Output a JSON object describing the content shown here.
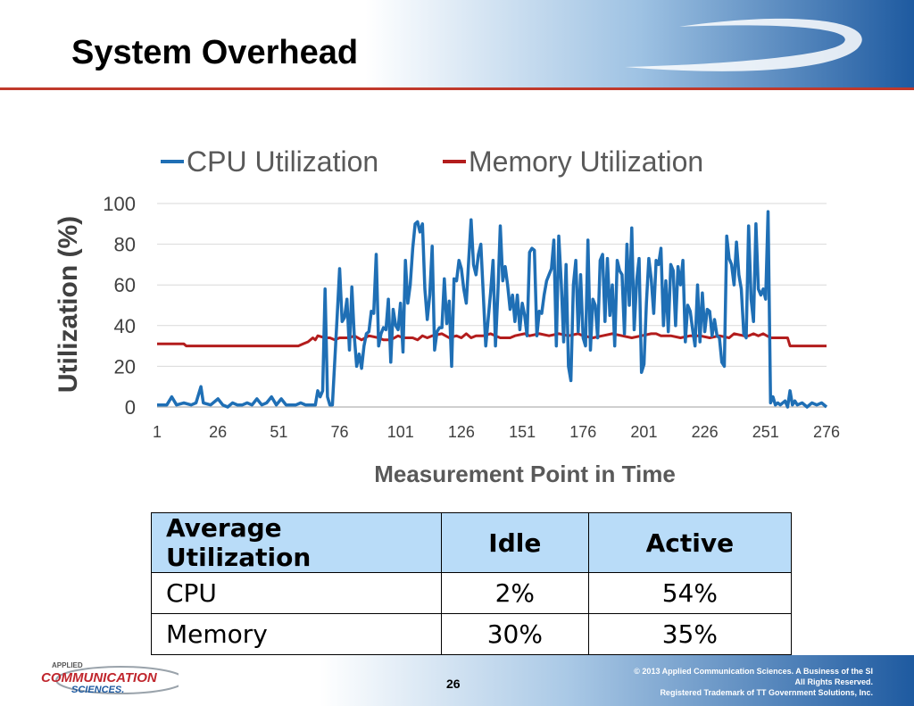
{
  "slide": {
    "title": "System Overhead",
    "page_number": "26"
  },
  "footer": {
    "copyright_lines": [
      "© 2013 Applied Communication Sciences. A Business of the SI",
      "All Rights Reserved.",
      "Registered Trademark of TT Government Solutions, Inc."
    ],
    "logo_text": {
      "top": "APPLIED",
      "middle": "COMMUNICATION",
      "bottom": "SCIENCES."
    }
  },
  "colors": {
    "cpu": "#1f6fb5",
    "memory": "#b31d1d",
    "header_blue": "#1e5aa0",
    "title_rule": "#c0392b",
    "table_header": "#b9dcf8"
  },
  "chart_data": {
    "type": "line",
    "xlabel": "Measurement Point in Time",
    "ylabel": "Utilization (%)",
    "ylim": [
      0,
      100
    ],
    "yticks": [
      "0",
      "20",
      "40",
      "60",
      "80",
      "100"
    ],
    "xlim": [
      1,
      276
    ],
    "xticks": [
      "1",
      "26",
      "51",
      "76",
      "101",
      "126",
      "151",
      "176",
      "201",
      "226",
      "251",
      "276"
    ],
    "grid": "horizontal",
    "legend_position": "top",
    "series": [
      {
        "name": "CPU Utilization",
        "color": "#1f6fb5",
        "points": [
          [
            1,
            1
          ],
          [
            5,
            1
          ],
          [
            7,
            5
          ],
          [
            9,
            1
          ],
          [
            12,
            2
          ],
          [
            15,
            1
          ],
          [
            17,
            2
          ],
          [
            19,
            10
          ],
          [
            20,
            2
          ],
          [
            23,
            1
          ],
          [
            26,
            4
          ],
          [
            28,
            1
          ],
          [
            30,
            0
          ],
          [
            32,
            2
          ],
          [
            34,
            1
          ],
          [
            36,
            1
          ],
          [
            38,
            2
          ],
          [
            40,
            1
          ],
          [
            42,
            4
          ],
          [
            44,
            1
          ],
          [
            46,
            2
          ],
          [
            48,
            5
          ],
          [
            50,
            1
          ],
          [
            52,
            4
          ],
          [
            54,
            1
          ],
          [
            56,
            1
          ],
          [
            58,
            1
          ],
          [
            60,
            2
          ],
          [
            62,
            1
          ],
          [
            64,
            1
          ],
          [
            66,
            1
          ],
          [
            67,
            8
          ],
          [
            68,
            5
          ],
          [
            69,
            8
          ],
          [
            70,
            58
          ],
          [
            71,
            5
          ],
          [
            72,
            1
          ],
          [
            73,
            1
          ],
          [
            75,
            45
          ],
          [
            76,
            68
          ],
          [
            77,
            42
          ],
          [
            78,
            44
          ],
          [
            79,
            53
          ],
          [
            80,
            28
          ],
          [
            81,
            59
          ],
          [
            82,
            35
          ],
          [
            83,
            20
          ],
          [
            84,
            26
          ],
          [
            85,
            19
          ],
          [
            86,
            30
          ],
          [
            87,
            36
          ],
          [
            88,
            37
          ],
          [
            89,
            47
          ],
          [
            90,
            46
          ],
          [
            91,
            75
          ],
          [
            92,
            30
          ],
          [
            93,
            36
          ],
          [
            94,
            39
          ],
          [
            95,
            38
          ],
          [
            96,
            53
          ],
          [
            97,
            22
          ],
          [
            98,
            48
          ],
          [
            99,
            40
          ],
          [
            100,
            38
          ],
          [
            101,
            51
          ],
          [
            102,
            27
          ],
          [
            103,
            72
          ],
          [
            104,
            51
          ],
          [
            105,
            60
          ],
          [
            106,
            78
          ],
          [
            107,
            90
          ],
          [
            108,
            91
          ],
          [
            109,
            86
          ],
          [
            110,
            90
          ],
          [
            111,
            58
          ],
          [
            112,
            43
          ],
          [
            113,
            55
          ],
          [
            114,
            79
          ],
          [
            115,
            28
          ],
          [
            116,
            37
          ],
          [
            117,
            39
          ],
          [
            118,
            39
          ],
          [
            119,
            63
          ],
          [
            120,
            41
          ],
          [
            121,
            52
          ],
          [
            122,
            20
          ],
          [
            123,
            63
          ],
          [
            124,
            62
          ],
          [
            125,
            72
          ],
          [
            126,
            68
          ],
          [
            127,
            58
          ],
          [
            128,
            51
          ],
          [
            129,
            72
          ],
          [
            130,
            92
          ],
          [
            131,
            70
          ],
          [
            132,
            65
          ],
          [
            133,
            75
          ],
          [
            134,
            80
          ],
          [
            135,
            55
          ],
          [
            136,
            30
          ],
          [
            137,
            43
          ],
          [
            138,
            56
          ],
          [
            139,
            72
          ],
          [
            140,
            30
          ],
          [
            141,
            56
          ],
          [
            142,
            89
          ],
          [
            143,
            62
          ],
          [
            144,
            69
          ],
          [
            145,
            60
          ],
          [
            146,
            48
          ],
          [
            147,
            55
          ],
          [
            148,
            42
          ],
          [
            149,
            55
          ],
          [
            150,
            38
          ],
          [
            151,
            51
          ],
          [
            152,
            45
          ],
          [
            153,
            35
          ],
          [
            154,
            76
          ],
          [
            155,
            78
          ],
          [
            156,
            77
          ],
          [
            157,
            35
          ],
          [
            158,
            47
          ],
          [
            159,
            46
          ],
          [
            160,
            55
          ],
          [
            161,
            62
          ],
          [
            162,
            65
          ],
          [
            163,
            68
          ],
          [
            164,
            82
          ],
          [
            165,
            30
          ],
          [
            166,
            84
          ],
          [
            167,
            62
          ],
          [
            168,
            32
          ],
          [
            169,
            70
          ],
          [
            170,
            20
          ],
          [
            171,
            13
          ],
          [
            172,
            60
          ],
          [
            173,
            72
          ],
          [
            174,
            37
          ],
          [
            175,
            65
          ],
          [
            176,
            34
          ],
          [
            177,
            30
          ],
          [
            178,
            82
          ],
          [
            179,
            28
          ],
          [
            180,
            53
          ],
          [
            181,
            50
          ],
          [
            182,
            34
          ],
          [
            183,
            72
          ],
          [
            184,
            75
          ],
          [
            185,
            42
          ],
          [
            186,
            73
          ],
          [
            187,
            45
          ],
          [
            188,
            60
          ],
          [
            189,
            30
          ],
          [
            190,
            72
          ],
          [
            191,
            67
          ],
          [
            192,
            65
          ],
          [
            193,
            36
          ],
          [
            194,
            80
          ],
          [
            195,
            50
          ],
          [
            196,
            88
          ],
          [
            197,
            38
          ],
          [
            198,
            62
          ],
          [
            199,
            73
          ],
          [
            200,
            17
          ],
          [
            201,
            21
          ],
          [
            202,
            51
          ],
          [
            203,
            73
          ],
          [
            204,
            63
          ],
          [
            205,
            46
          ],
          [
            206,
            72
          ],
          [
            207,
            70
          ],
          [
            208,
            78
          ],
          [
            209,
            40
          ],
          [
            210,
            62
          ],
          [
            211,
            37
          ],
          [
            212,
            70
          ],
          [
            213,
            67
          ],
          [
            214,
            40
          ],
          [
            215,
            69
          ],
          [
            216,
            60
          ],
          [
            217,
            72
          ],
          [
            218,
            32
          ],
          [
            219,
            50
          ],
          [
            220,
            47
          ],
          [
            221,
            38
          ],
          [
            222,
            30
          ],
          [
            223,
            60
          ],
          [
            224,
            32
          ],
          [
            225,
            56
          ],
          [
            226,
            37
          ],
          [
            227,
            48
          ],
          [
            228,
            47
          ],
          [
            229,
            35
          ],
          [
            230,
            43
          ],
          [
            231,
            35
          ],
          [
            232,
            34
          ],
          [
            233,
            22
          ],
          [
            234,
            20
          ],
          [
            235,
            84
          ],
          [
            236,
            73
          ],
          [
            237,
            70
          ],
          [
            238,
            60
          ],
          [
            239,
            81
          ],
          [
            240,
            65
          ],
          [
            241,
            58
          ],
          [
            242,
            36
          ],
          [
            243,
            34
          ],
          [
            244,
            89
          ],
          [
            245,
            53
          ],
          [
            246,
            42
          ],
          [
            247,
            90
          ],
          [
            248,
            58
          ],
          [
            249,
            55
          ],
          [
            250,
            58
          ],
          [
            251,
            53
          ],
          [
            252,
            96
          ],
          [
            253,
            2
          ],
          [
            254,
            5
          ],
          [
            255,
            1
          ],
          [
            256,
            2
          ],
          [
            257,
            1
          ],
          [
            259,
            3
          ],
          [
            260,
            0
          ],
          [
            261,
            8
          ],
          [
            262,
            1
          ],
          [
            263,
            3
          ],
          [
            264,
            1
          ],
          [
            266,
            2
          ],
          [
            268,
            0
          ],
          [
            270,
            2
          ],
          [
            272,
            1
          ],
          [
            274,
            2
          ],
          [
            276,
            0
          ]
        ]
      },
      {
        "name": "Memory Utilization",
        "color": "#b31d1d",
        "points": [
          [
            1,
            31
          ],
          [
            12,
            31
          ],
          [
            13,
            30
          ],
          [
            59,
            30
          ],
          [
            61,
            31
          ],
          [
            63,
            32
          ],
          [
            65,
            34
          ],
          [
            66,
            33
          ],
          [
            67,
            35
          ],
          [
            70,
            34
          ],
          [
            72,
            34
          ],
          [
            74,
            33
          ],
          [
            76,
            34
          ],
          [
            80,
            34
          ],
          [
            82,
            35
          ],
          [
            85,
            33
          ],
          [
            88,
            35
          ],
          [
            92,
            34
          ],
          [
            94,
            33
          ],
          [
            97,
            33
          ],
          [
            100,
            35
          ],
          [
            102,
            34
          ],
          [
            106,
            34
          ],
          [
            108,
            33
          ],
          [
            110,
            35
          ],
          [
            112,
            34
          ],
          [
            114,
            35
          ],
          [
            118,
            36
          ],
          [
            121,
            34
          ],
          [
            124,
            35
          ],
          [
            126,
            34
          ],
          [
            128,
            36
          ],
          [
            130,
            34
          ],
          [
            132,
            35
          ],
          [
            135,
            35
          ],
          [
            138,
            36
          ],
          [
            140,
            35
          ],
          [
            142,
            34
          ],
          [
            146,
            34
          ],
          [
            148,
            35
          ],
          [
            152,
            36
          ],
          [
            154,
            35
          ],
          [
            158,
            36
          ],
          [
            162,
            35
          ],
          [
            166,
            36
          ],
          [
            170,
            35
          ],
          [
            174,
            36
          ],
          [
            176,
            35
          ],
          [
            180,
            34
          ],
          [
            184,
            35
          ],
          [
            188,
            36
          ],
          [
            192,
            35
          ],
          [
            196,
            34
          ],
          [
            200,
            35
          ],
          [
            204,
            36
          ],
          [
            206,
            36
          ],
          [
            208,
            35
          ],
          [
            212,
            35
          ],
          [
            216,
            34
          ],
          [
            220,
            35
          ],
          [
            224,
            35
          ],
          [
            228,
            34
          ],
          [
            232,
            35
          ],
          [
            236,
            34
          ],
          [
            238,
            36
          ],
          [
            242,
            35
          ],
          [
            244,
            35
          ],
          [
            246,
            36
          ],
          [
            248,
            35
          ],
          [
            250,
            36
          ],
          [
            253,
            34
          ],
          [
            260,
            34
          ],
          [
            261,
            30
          ],
          [
            276,
            30
          ]
        ]
      }
    ]
  },
  "table": {
    "headers": [
      "Average Utilization",
      "Idle",
      "Active"
    ],
    "rows": [
      [
        "CPU",
        "2%",
        "54%"
      ],
      [
        "Memory",
        "30%",
        "35%"
      ]
    ]
  }
}
